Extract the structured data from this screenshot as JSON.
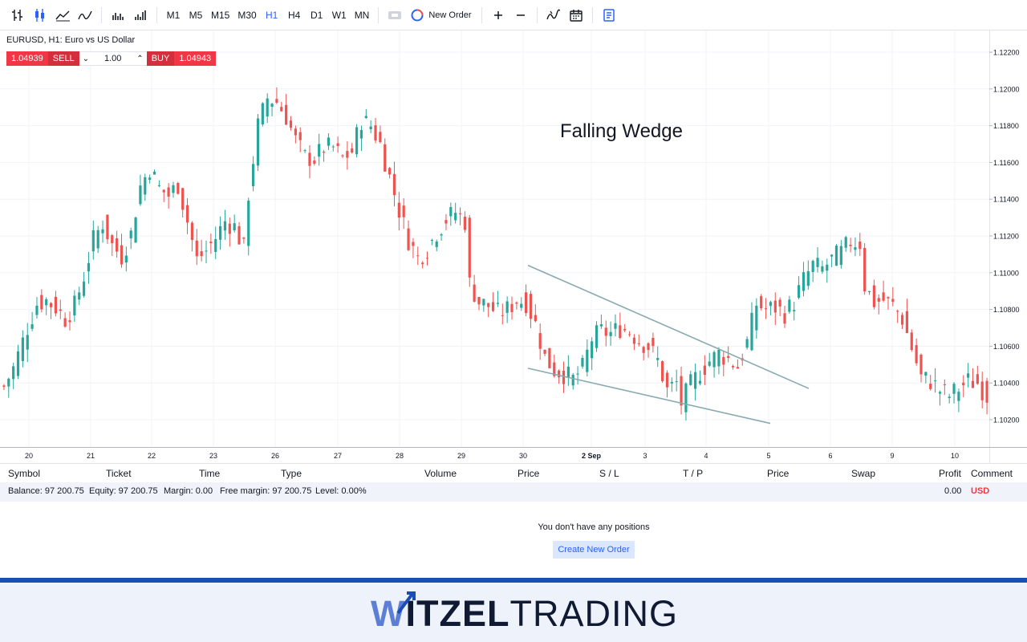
{
  "toolbar": {
    "chart_icons": [
      "bars-chart-icon",
      "candles-chart-icon",
      "area-chart-icon",
      "line-chart-icon",
      "volume-bars-icon",
      "volume-bars-alt-icon"
    ],
    "timeframes": [
      "M1",
      "M5",
      "M15",
      "M30",
      "H1",
      "H4",
      "D1",
      "W1",
      "MN"
    ],
    "active_timeframe": "H1",
    "new_order_label": "New Order",
    "zoom_in_icon": "plus-icon",
    "zoom_out_icon": "minus-icon",
    "indicators_icon": "indicators-icon",
    "calendar_icon": "calendar-icon",
    "journal_icon": "journal-icon"
  },
  "chart": {
    "title": "EURUSD, H1: Euro vs US Dollar",
    "sell_price": "1.04939",
    "sell_label": "SELL",
    "volume": "1.00",
    "buy_label": "BUY",
    "buy_price": "1.04943",
    "pattern_label": "Falling Wedge",
    "up_color": "#26a69a",
    "down_color": "#ef5350",
    "trendline_color": "#88aab0"
  },
  "chart_data": {
    "type": "candlestick",
    "title": "EURUSD, H1: Euro vs US Dollar",
    "y_ticks": [
      "1.12200",
      "1.12000",
      "1.11800",
      "1.11600",
      "1.11400",
      "1.11200",
      "1.11000",
      "1.10800",
      "1.10600",
      "1.10400",
      "1.10200"
    ],
    "x_ticks": [
      "20",
      "21",
      "22",
      "23",
      "26",
      "27",
      "28",
      "29",
      "30",
      "2 Sep",
      "3",
      "4",
      "5",
      "6",
      "9",
      "10"
    ],
    "ylim": [
      1.1015,
      1.123
    ],
    "grid": true,
    "path_points": [
      [
        0,
        1.1038
      ],
      [
        2,
        1.1048
      ],
      [
        5,
        1.107
      ],
      [
        7,
        1.1083
      ],
      [
        9,
        1.1085
      ],
      [
        11,
        1.1081
      ],
      [
        13,
        1.1075
      ],
      [
        15,
        1.1082
      ],
      [
        17,
        1.1098
      ],
      [
        19,
        1.1118
      ],
      [
        21,
        1.1127
      ],
      [
        23,
        1.1115
      ],
      [
        25,
        1.1109
      ],
      [
        27,
        1.1121
      ],
      [
        29,
        1.1147
      ],
      [
        31,
        1.1157
      ],
      [
        33,
        1.1146
      ],
      [
        35,
        1.1142
      ],
      [
        37,
        1.1148
      ],
      [
        39,
        1.1128
      ],
      [
        41,
        1.1107
      ],
      [
        43,
        1.1112
      ],
      [
        45,
        1.1119
      ],
      [
        47,
        1.1128
      ],
      [
        49,
        1.1125
      ],
      [
        51,
        1.1113
      ],
      [
        52,
        1.1143
      ],
      [
        54,
        1.118
      ],
      [
        56,
        1.1195
      ],
      [
        58,
        1.1193
      ],
      [
        60,
        1.1185
      ],
      [
        62,
        1.1172
      ],
      [
        64,
        1.1163
      ],
      [
        66,
        1.1162
      ],
      [
        68,
        1.1168
      ],
      [
        70,
        1.1168
      ],
      [
        72,
        1.1162
      ],
      [
        74,
        1.1166
      ],
      [
        76,
        1.1183
      ],
      [
        78,
        1.118
      ],
      [
        80,
        1.117
      ],
      [
        82,
        1.1152
      ],
      [
        84,
        1.1134
      ],
      [
        86,
        1.1118
      ],
      [
        88,
        1.1108
      ],
      [
        90,
        1.1113
      ],
      [
        92,
        1.1122
      ],
      [
        94,
        1.1129
      ],
      [
        96,
        1.1133
      ],
      [
        98,
        1.1128
      ],
      [
        99,
        1.1094
      ],
      [
        101,
        1.1084
      ],
      [
        103,
        1.1082
      ],
      [
        105,
        1.1078
      ],
      [
        107,
        1.108
      ],
      [
        109,
        1.1085
      ],
      [
        111,
        1.1084
      ],
      [
        113,
        1.1072
      ],
      [
        115,
        1.1054
      ],
      [
        117,
        1.1047
      ],
      [
        119,
        1.1045
      ],
      [
        121,
        1.1042
      ],
      [
        123,
        1.1048
      ],
      [
        125,
        1.1064
      ],
      [
        127,
        1.1068
      ],
      [
        129,
        1.1067
      ],
      [
        131,
        1.107
      ],
      [
        133,
        1.1068
      ],
      [
        135,
        1.1063
      ],
      [
        137,
        1.106
      ],
      [
        139,
        1.1052
      ],
      [
        141,
        1.1036
      ],
      [
        143,
        1.104
      ],
      [
        144,
        1.1029
      ],
      [
        146,
        1.1039
      ],
      [
        148,
        1.1046
      ],
      [
        150,
        1.1052
      ],
      [
        152,
        1.1056
      ],
      [
        154,
        1.1053
      ],
      [
        156,
        1.1049
      ],
      [
        158,
        1.1062
      ],
      [
        160,
        1.1083
      ],
      [
        162,
        1.108
      ],
      [
        164,
        1.1081
      ],
      [
        166,
        1.1078
      ],
      [
        168,
        1.1084
      ],
      [
        170,
        1.1096
      ],
      [
        172,
        1.1104
      ],
      [
        174,
        1.1102
      ],
      [
        176,
        1.1107
      ],
      [
        178,
        1.1111
      ],
      [
        180,
        1.1117
      ],
      [
        182,
        1.1116
      ],
      [
        183,
        1.1093
      ],
      [
        185,
        1.1084
      ],
      [
        187,
        1.1085
      ],
      [
        189,
        1.1082
      ],
      [
        191,
        1.1075
      ],
      [
        193,
        1.1059
      ],
      [
        195,
        1.1043
      ],
      [
        197,
        1.1041
      ],
      [
        199,
        1.1036
      ],
      [
        201,
        1.1033
      ],
      [
        203,
        1.1037
      ],
      [
        205,
        1.1041
      ],
      [
        207,
        1.104
      ],
      [
        209,
        1.1033
      ]
    ],
    "trendlines": [
      {
        "name": "upper",
        "from": [
          658,
          1.1104
        ],
        "to": [
          1008,
          1.1037
        ]
      },
      {
        "name": "lower",
        "from": [
          658,
          1.1048
        ],
        "to": [
          960,
          1.1018
        ]
      }
    ]
  },
  "panel": {
    "columns": [
      "Symbol",
      "Ticket",
      "Time",
      "Type",
      "Volume",
      "Price",
      "S / L",
      "T / P",
      "Price",
      "Swap",
      "Profit",
      "Comment"
    ],
    "balance": "Balance: 97 200.75",
    "equity": "Equity: 97 200.75",
    "margin": "Margin: 0.00",
    "free_margin": "Free margin: 97 200.75",
    "level": "Level: 0.00%",
    "profit": "0.00",
    "currency": "USD",
    "empty_message": "You don't have any positions",
    "create_order_label": "Create New Order"
  },
  "brand": {
    "w": "W",
    "bold": "ITZEL",
    "light": "TRADING"
  }
}
